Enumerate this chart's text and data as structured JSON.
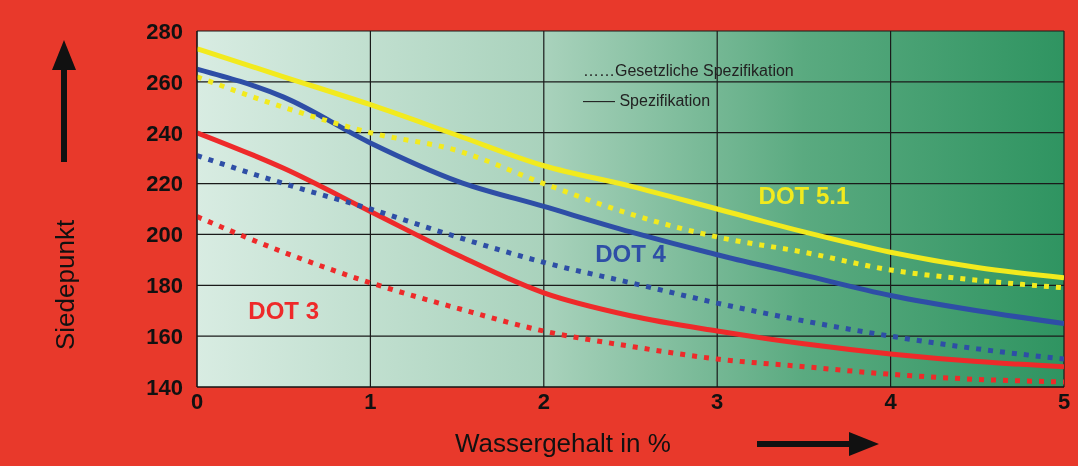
{
  "chart_data": {
    "type": "line",
    "xlabel": "Wassergehalt in %",
    "ylabel": "Siedepunkt",
    "x": [
      0,
      0.5,
      1,
      1.5,
      2,
      2.5,
      3,
      3.5,
      4,
      4.5,
      5
    ],
    "xlim": [
      0,
      5
    ],
    "xticks": [
      0,
      1,
      2,
      3,
      4,
      5
    ],
    "ylim": [
      140,
      280
    ],
    "yticks": [
      140,
      160,
      180,
      200,
      220,
      240,
      260,
      280
    ],
    "grid": true,
    "marker": "none",
    "series": [
      {
        "name": "DOT 3",
        "color": "#ee2a2a",
        "line_style": "solid",
        "values": [
          240,
          226,
          209,
          192,
          177,
          168,
          162,
          157,
          153,
          150,
          148
        ]
      },
      {
        "color": "#ee2a2a",
        "line_style": "dotted",
        "values": [
          207,
          193,
          181,
          171,
          162,
          156,
          151,
          148,
          145,
          143,
          142
        ]
      },
      {
        "name": "DOT 4",
        "color": "#2e4ea6",
        "line_style": "solid",
        "values": [
          265,
          254,
          236,
          221,
          211,
          201,
          192,
          184,
          176,
          170,
          165
        ]
      },
      {
        "color": "#2e4ea6",
        "line_style": "dotted",
        "values": [
          231,
          220,
          210,
          199,
          189,
          181,
          173,
          166,
          160,
          155,
          151
        ]
      },
      {
        "name": "DOT 5.1",
        "color": "#f2ea1e",
        "line_style": "solid",
        "values": [
          273,
          262,
          251,
          239,
          227,
          219,
          210,
          201,
          193,
          187,
          183
        ]
      },
      {
        "color": "#f2ea1e",
        "line_style": "dotted",
        "values": [
          262,
          250,
          240,
          233,
          220,
          208,
          199,
          193,
          186,
          182,
          179
        ]
      }
    ],
    "annotations": [
      "……Gesetzliche Spezifikation",
      "—— Spezifikation"
    ]
  }
}
